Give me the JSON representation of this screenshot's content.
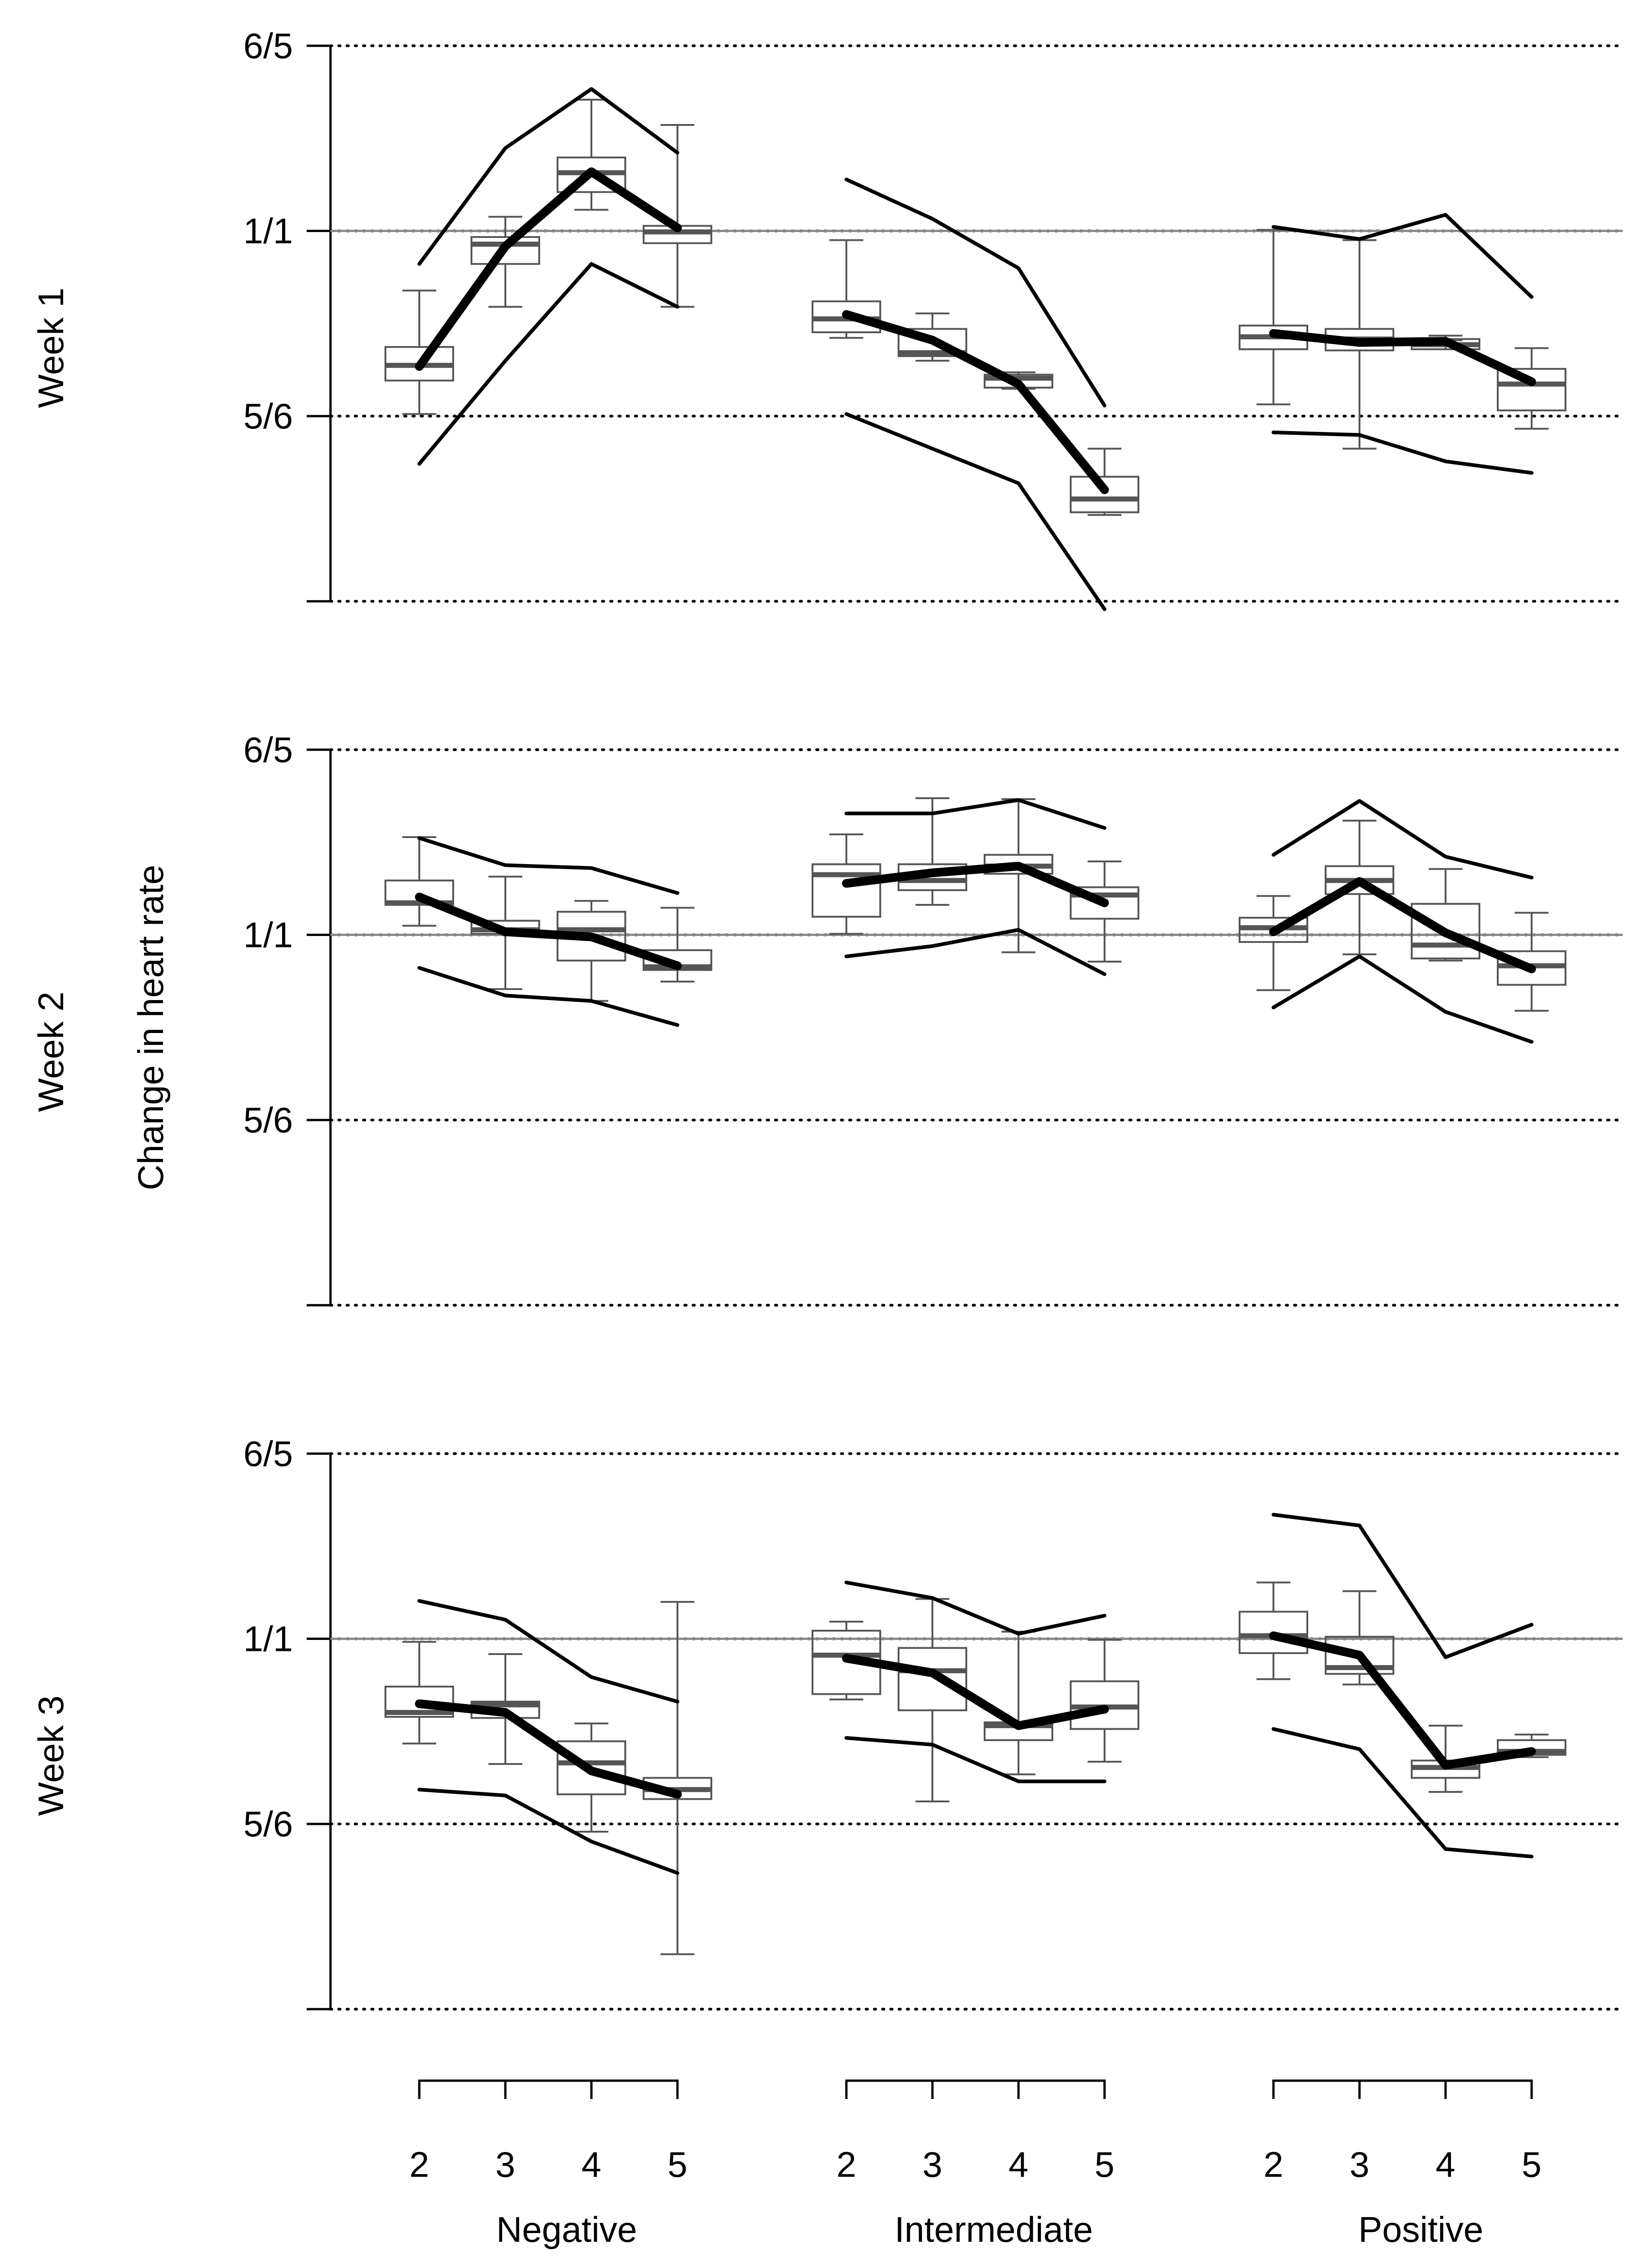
{
  "chart_data": {
    "type": "line",
    "ylabel": "Change in heart rate",
    "scale": "log",
    "ylim": [
      0.694,
      1.2
    ],
    "yticks": [
      {
        "label": "6/5",
        "value": 1.2
      },
      {
        "label": "1/1",
        "value": 1.0
      },
      {
        "label": "5/6",
        "value": 0.8333
      },
      {
        "label": "",
        "value": 0.6944
      }
    ],
    "groups": [
      "Negative",
      "Intermediate",
      "Positive"
    ],
    "x": [
      "2",
      "3",
      "4",
      "5"
    ],
    "reference_value": 1.0,
    "panels": [
      {
        "title": "Week 1",
        "groups": [
          {
            "name": "Negative",
            "mean": [
              0.875,
              0.985,
              1.06,
              1.003
            ],
            "upper": [
              0.968,
              1.085,
              1.15,
              1.08
            ],
            "lower": [
              0.795,
              0.88,
              0.968,
              0.928
            ],
            "boxes": [
              {
                "wlo": 0.835,
                "q1": 0.863,
                "med": 0.876,
                "q3": 0.892,
                "whi": 0.943
              },
              {
                "wlo": 0.928,
                "q1": 0.968,
                "med": 0.987,
                "q3": 0.994,
                "whi": 1.014
              },
              {
                "wlo": 1.021,
                "q1": 1.039,
                "med": 1.059,
                "q3": 1.075,
                "whi": 1.138
              },
              {
                "wlo": 0.928,
                "q1": 0.988,
                "med": 0.999,
                "q3": 1.005,
                "whi": 1.11
              }
            ]
          },
          {
            "name": "Intermediate",
            "mean": [
              0.921,
              0.898,
              0.86,
              0.775
            ],
            "upper": [
              1.052,
              1.012,
              0.964,
              0.842
            ],
            "lower": [
              0.835,
              0.807,
              0.78,
              0.689
            ],
            "boxes": [
              {
                "wlo": 0.9,
                "q1": 0.905,
                "med": 0.917,
                "q3": 0.933,
                "whi": 0.991
              },
              {
                "wlo": 0.88,
                "q1": 0.884,
                "med": 0.887,
                "q3": 0.908,
                "whi": 0.922
              },
              {
                "wlo": 0.856,
                "q1": 0.857,
                "med": 0.865,
                "q3": 0.868,
                "whi": 0.87
              },
              {
                "wlo": 0.756,
                "q1": 0.758,
                "med": 0.768,
                "q3": 0.785,
                "whi": 0.807
              }
            ]
          },
          {
            "name": "Positive",
            "mean": [
              0.904,
              0.896,
              0.897,
              0.862
            ],
            "upper": [
              1.004,
              0.992,
              1.016,
              0.937
            ],
            "lower": [
              0.82,
              0.818,
              0.797,
              0.788
            ],
            "boxes": [
              {
                "wlo": 0.843,
                "q1": 0.89,
                "med": 0.901,
                "q3": 0.911,
                "whi": 1.001
              },
              {
                "wlo": 0.807,
                "q1": 0.889,
                "med": 0.899,
                "q3": 0.908,
                "whi": 0.991
              },
              {
                "wlo": 0.898,
                "q1": 0.89,
                "med": 0.894,
                "q3": 0.899,
                "whi": 0.902
              },
              {
                "wlo": 0.823,
                "q1": 0.838,
                "med": 0.86,
                "q3": 0.873,
                "whi": 0.891
              }
            ]
          }
        ]
      },
      {
        "title": "Week 2",
        "groups": [
          {
            "name": "Negative",
            "mean": [
              1.038,
              1.003,
              0.998,
              0.97
            ],
            "upper": [
              1.1,
              1.071,
              1.068,
              1.042
            ],
            "lower": [
              0.968,
              0.942,
              0.937,
              0.915
            ],
            "boxes": [
              {
                "wlo": 1.009,
                "q1": 1.03,
                "med": 1.032,
                "q3": 1.055,
                "whi": 1.101
              },
              {
                "wlo": 0.948,
                "q1": 1.001,
                "med": 1.005,
                "q3": 1.014,
                "whi": 1.059
              },
              {
                "wlo": 0.937,
                "q1": 0.975,
                "med": 1.005,
                "q3": 1.023,
                "whi": 1.034
              },
              {
                "wlo": 0.955,
                "q1": 0.966,
                "med": 0.969,
                "q3": 0.985,
                "whi": 1.027
              }
            ]
          },
          {
            "name": "Intermediate",
            "mean": [
              1.052,
              1.063,
              1.07,
              1.032
            ],
            "upper": [
              1.127,
              1.127,
              1.142,
              1.111
            ],
            "lower": [
              0.979,
              0.989,
              1.005,
              0.962
            ],
            "boxes": [
              {
                "wlo": 1.001,
                "q1": 1.018,
                "med": 1.061,
                "q3": 1.072,
                "whi": 1.104
              },
              {
                "wlo": 1.03,
                "q1": 1.045,
                "med": 1.055,
                "q3": 1.072,
                "whi": 1.144
              },
              {
                "wlo": 0.983,
                "q1": 1.062,
                "med": 1.07,
                "q3": 1.082,
                "whi": 1.143
              },
              {
                "wlo": 0.974,
                "q1": 1.016,
                "med": 1.04,
                "q3": 1.048,
                "whi": 1.075
              }
            ]
          },
          {
            "name": "Positive",
            "mean": [
              1.003,
              1.054,
              1.002,
              0.967
            ],
            "upper": [
              1.082,
              1.141,
              1.08,
              1.058
            ],
            "lower": [
              0.931,
              0.979,
              0.927,
              0.9
            ],
            "boxes": [
              {
                "wlo": 0.947,
                "q1": 0.993,
                "med": 1.007,
                "q3": 1.017,
                "whi": 1.039
              },
              {
                "wlo": 0.981,
                "q1": 1.041,
                "med": 1.055,
                "q3": 1.07,
                "whi": 1.119
              },
              {
                "wlo": 0.975,
                "q1": 0.977,
                "med": 0.99,
                "q3": 1.031,
                "whi": 1.067
              },
              {
                "wlo": 0.928,
                "q1": 0.952,
                "med": 0.97,
                "q3": 0.984,
                "whi": 1.022
              }
            ]
          }
        ]
      },
      {
        "title": "Week 3",
        "groups": [
          {
            "name": "Negative",
            "mean": [
              0.938,
              0.93,
              0.878,
              0.858
            ],
            "upper": [
              1.038,
              1.019,
              0.963,
              0.94
            ],
            "lower": [
              0.862,
              0.857,
              0.819,
              0.794
            ],
            "boxes": [
              {
                "wlo": 0.902,
                "q1": 0.926,
                "med": 0.93,
                "q3": 0.954,
                "whi": 0.997
              },
              {
                "wlo": 0.884,
                "q1": 0.925,
                "med": 0.937,
                "q3": 0.94,
                "whi": 0.985
              },
              {
                "wlo": 0.827,
                "q1": 0.858,
                "med": 0.885,
                "q3": 0.904,
                "whi": 0.92
              },
              {
                "wlo": 0.733,
                "q1": 0.854,
                "med": 0.862,
                "q3": 0.872,
                "whi": 1.037
              }
            ]
          },
          {
            "name": "Intermediate",
            "mean": [
              0.981,
              0.967,
              0.918,
              0.933
            ],
            "upper": [
              1.057,
              1.041,
              1.005,
              1.023
            ],
            "lower": [
              0.907,
              0.901,
              0.869,
              0.869
            ],
            "boxes": [
              {
                "wlo": 0.942,
                "q1": 0.947,
                "med": 0.984,
                "q3": 1.008,
                "whi": 1.017
              },
              {
                "wlo": 0.852,
                "q1": 0.932,
                "med": 0.969,
                "q3": 0.991,
                "whi": 1.04
              },
              {
                "wlo": 0.875,
                "q1": 0.905,
                "med": 0.918,
                "q3": 0.921,
                "whi": 1.007
              },
              {
                "wlo": 0.886,
                "q1": 0.915,
                "med": 0.935,
                "q3": 0.959,
                "whi": 0.999
              }
            ]
          },
          {
            "name": "Positive",
            "mean": [
              1.003,
              0.984,
              0.883,
              0.895
            ],
            "upper": [
              1.13,
              1.118,
              0.982,
              1.014
            ],
            "lower": [
              0.915,
              0.897,
              0.813,
              0.807
            ],
            "boxes": [
              {
                "wlo": 0.961,
                "q1": 0.986,
                "med": 1.003,
                "q3": 1.027,
                "whi": 1.057
              },
              {
                "wlo": 0.956,
                "q1": 0.966,
                "med": 0.972,
                "q3": 1.002,
                "whi": 1.048
              },
              {
                "wlo": 0.86,
                "q1": 0.872,
                "med": 0.881,
                "q3": 0.887,
                "whi": 0.918
              },
              {
                "wlo": 0.89,
                "q1": 0.892,
                "med": 0.895,
                "q3": 0.905,
                "whi": 0.91
              }
            ]
          }
        ]
      }
    ]
  }
}
